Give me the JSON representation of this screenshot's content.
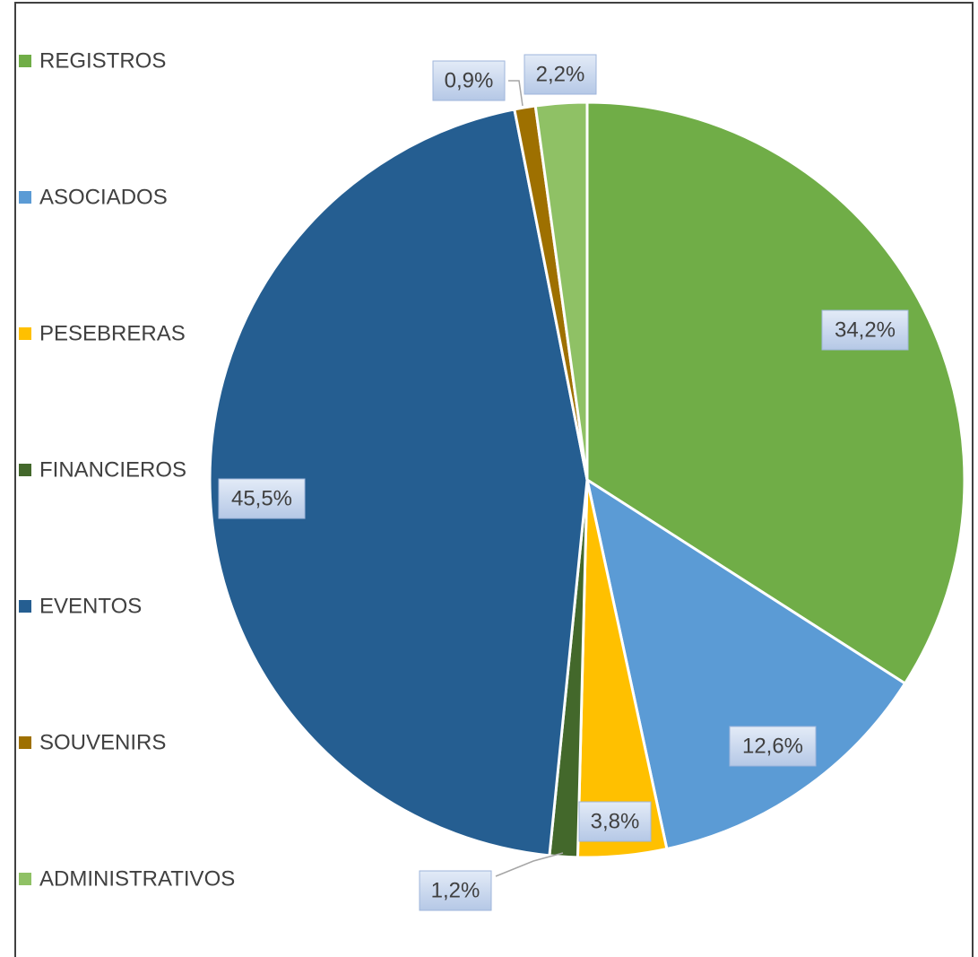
{
  "chart_data": {
    "type": "pie",
    "categories": [
      "REGISTROS",
      "ASOCIADOS",
      "PESEBRERAS",
      "FINANCIEROS",
      "EVENTOS",
      "SOUVENIRS",
      "ADMINISTRATIVOS"
    ],
    "values": [
      34.2,
      12.6,
      3.8,
      1.2,
      45.5,
      0.9,
      2.2
    ],
    "value_labels": [
      "34,2%",
      "12,6%",
      "3,8%",
      "1,2%",
      "45,5%",
      "0,9%",
      "2,2%"
    ],
    "colors": [
      "#70ad47",
      "#5b9bd5",
      "#ffc000",
      "#43682b",
      "#255e91",
      "#9e7000",
      "#8fc165"
    ],
    "legend": "left"
  }
}
